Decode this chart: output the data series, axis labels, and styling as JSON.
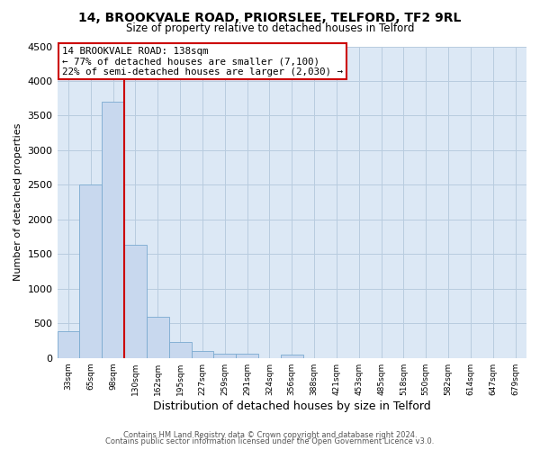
{
  "title1": "14, BROOKVALE ROAD, PRIORSLEE, TELFORD, TF2 9RL",
  "title2": "Size of property relative to detached houses in Telford",
  "xlabel": "Distribution of detached houses by size in Telford",
  "ylabel": "Number of detached properties",
  "bar_labels": [
    "33sqm",
    "65sqm",
    "98sqm",
    "130sqm",
    "162sqm",
    "195sqm",
    "227sqm",
    "259sqm",
    "291sqm",
    "324sqm",
    "356sqm",
    "388sqm",
    "421sqm",
    "453sqm",
    "485sqm",
    "518sqm",
    "550sqm",
    "582sqm",
    "614sqm",
    "647sqm",
    "679sqm"
  ],
  "bar_values": [
    380,
    2500,
    3700,
    1630,
    600,
    230,
    100,
    55,
    55,
    0,
    50,
    0,
    0,
    0,
    0,
    0,
    0,
    0,
    0,
    0,
    0
  ],
  "bar_color": "#c8d8ee",
  "bar_edgecolor": "#7aaad0",
  "vline_x_idx": 3,
  "vline_color": "#cc0000",
  "ylim": [
    0,
    4500
  ],
  "yticks": [
    0,
    500,
    1000,
    1500,
    2000,
    2500,
    3000,
    3500,
    4000,
    4500
  ],
  "annotation_title": "14 BROOKVALE ROAD: 138sqm",
  "annotation_line1": "← 77% of detached houses are smaller (7,100)",
  "annotation_line2": "22% of semi-detached houses are larger (2,030) →",
  "annotation_box_color": "#cc0000",
  "footer1": "Contains HM Land Registry data © Crown copyright and database right 2024.",
  "footer2": "Contains public sector information licensed under the Open Government Licence v3.0.",
  "fig_bg_color": "#ffffff",
  "plot_bg_color": "#dce8f5",
  "grid_color": "#b8ccdf"
}
